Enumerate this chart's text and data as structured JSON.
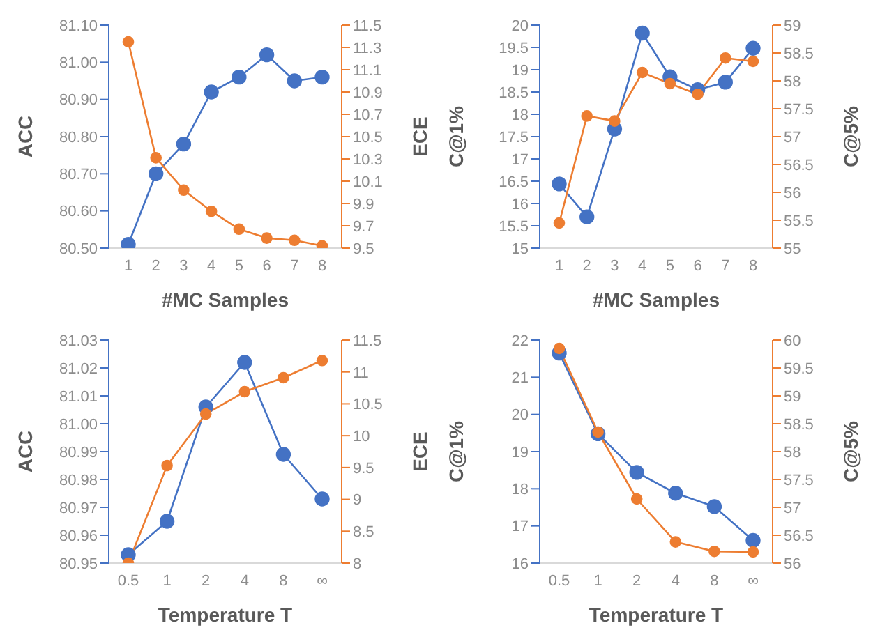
{
  "chart_data": [
    {
      "type": "line",
      "xlabel": "#MC Samples",
      "ylabel": "ACC",
      "y2label": "ECE",
      "marker": "circle",
      "categories": [
        "1",
        "2",
        "3",
        "4",
        "5",
        "6",
        "7",
        "8"
      ],
      "ylim": [
        80.5,
        81.1
      ],
      "yticks": [
        {
          "value": 80.5,
          "label": "80.50"
        },
        {
          "value": 80.6,
          "label": "80.60"
        },
        {
          "value": 80.7,
          "label": "80.70"
        },
        {
          "value": 80.8,
          "label": "80.80"
        },
        {
          "value": 80.9,
          "label": "80.90"
        },
        {
          "value": 81.0,
          "label": "81.00"
        },
        {
          "value": 81.1,
          "label": "81.10"
        }
      ],
      "y2lim": [
        9.5,
        11.5
      ],
      "y2ticks": [
        9.5,
        9.7,
        9.9,
        10.1,
        10.3,
        10.5,
        10.7,
        10.9,
        11.1,
        11.3,
        11.5
      ],
      "series": [
        {
          "color": "#4472c4",
          "values": [
            80.51,
            80.7,
            80.78,
            80.92,
            80.96,
            81.02,
            80.95,
            80.96
          ]
        },
        {
          "color": "#ed7d31",
          "axis": "y2",
          "values": [
            11.35,
            10.31,
            10.02,
            9.83,
            9.67,
            9.59,
            9.57,
            9.52
          ]
        }
      ]
    },
    {
      "type": "line",
      "xlabel": "#MC Samples",
      "ylabel": "C@1%",
      "y2label": "C@5%",
      "marker": "circle",
      "categories": [
        "1",
        "2",
        "3",
        "4",
        "5",
        "6",
        "7",
        "8"
      ],
      "ylim": [
        15,
        20
      ],
      "yticks": [
        15,
        15.5,
        16,
        16.5,
        17,
        17.5,
        18,
        18.5,
        19,
        19.5,
        20
      ],
      "y2lim": [
        55,
        59
      ],
      "y2ticks": [
        55,
        55.5,
        56,
        56.5,
        57,
        57.5,
        58,
        58.5,
        59
      ],
      "series": [
        {
          "color": "#4472c4",
          "values": [
            16.44,
            15.7,
            17.67,
            19.82,
            18.84,
            18.55,
            18.72,
            19.48
          ]
        },
        {
          "color": "#ed7d31",
          "axis": "y2",
          "values": [
            55.45,
            57.37,
            57.28,
            58.15,
            57.95,
            57.76,
            58.41,
            58.35
          ]
        }
      ]
    },
    {
      "type": "line",
      "xlabel": "Temperature T",
      "ylabel": "ACC",
      "y2label": "ECE",
      "marker": "circle",
      "categories": [
        "0.5",
        "1",
        "2",
        "4",
        "8",
        "∞"
      ],
      "ylim": [
        80.95,
        81.03
      ],
      "yticks": [
        {
          "value": 80.95,
          "label": "80.95"
        },
        {
          "value": 80.96,
          "label": "80.96"
        },
        {
          "value": 80.97,
          "label": "80.97"
        },
        {
          "value": 80.98,
          "label": "80.98"
        },
        {
          "value": 80.99,
          "label": "80.99"
        },
        {
          "value": 81.0,
          "label": "81.00"
        },
        {
          "value": 81.01,
          "label": "81.01"
        },
        {
          "value": 81.02,
          "label": "81.02"
        },
        {
          "value": 81.03,
          "label": "81.03"
        }
      ],
      "y2lim": [
        8,
        11.5
      ],
      "y2ticks": [
        8,
        8.5,
        9,
        9.5,
        10,
        10.5,
        11,
        11.5
      ],
      "series": [
        {
          "color": "#4472c4",
          "values": [
            80.953,
            80.965,
            81.006,
            81.022,
            80.989,
            80.973
          ]
        },
        {
          "color": "#ed7d31",
          "axis": "y2",
          "values": [
            8.0,
            9.53,
            10.34,
            10.69,
            10.91,
            11.18
          ]
        }
      ]
    },
    {
      "type": "line",
      "xlabel": "Temperature T",
      "ylabel": "C@1%",
      "y2label": "C@5%",
      "marker": "circle",
      "categories": [
        "0.5",
        "1",
        "2",
        "4",
        "8",
        "∞"
      ],
      "ylim": [
        16,
        22
      ],
      "yticks": [
        16,
        17,
        18,
        19,
        20,
        21,
        22
      ],
      "y2lim": [
        56,
        60
      ],
      "y2ticks": [
        56,
        56.5,
        57,
        57.5,
        58,
        58.5,
        59,
        59.5,
        60
      ],
      "series": [
        {
          "color": "#4472c4",
          "values": [
            21.65,
            19.48,
            18.44,
            17.88,
            17.52,
            16.61
          ]
        },
        {
          "color": "#ed7d31",
          "axis": "y2",
          "values": [
            59.85,
            58.35,
            57.15,
            56.38,
            56.21,
            56.2
          ]
        }
      ]
    }
  ]
}
